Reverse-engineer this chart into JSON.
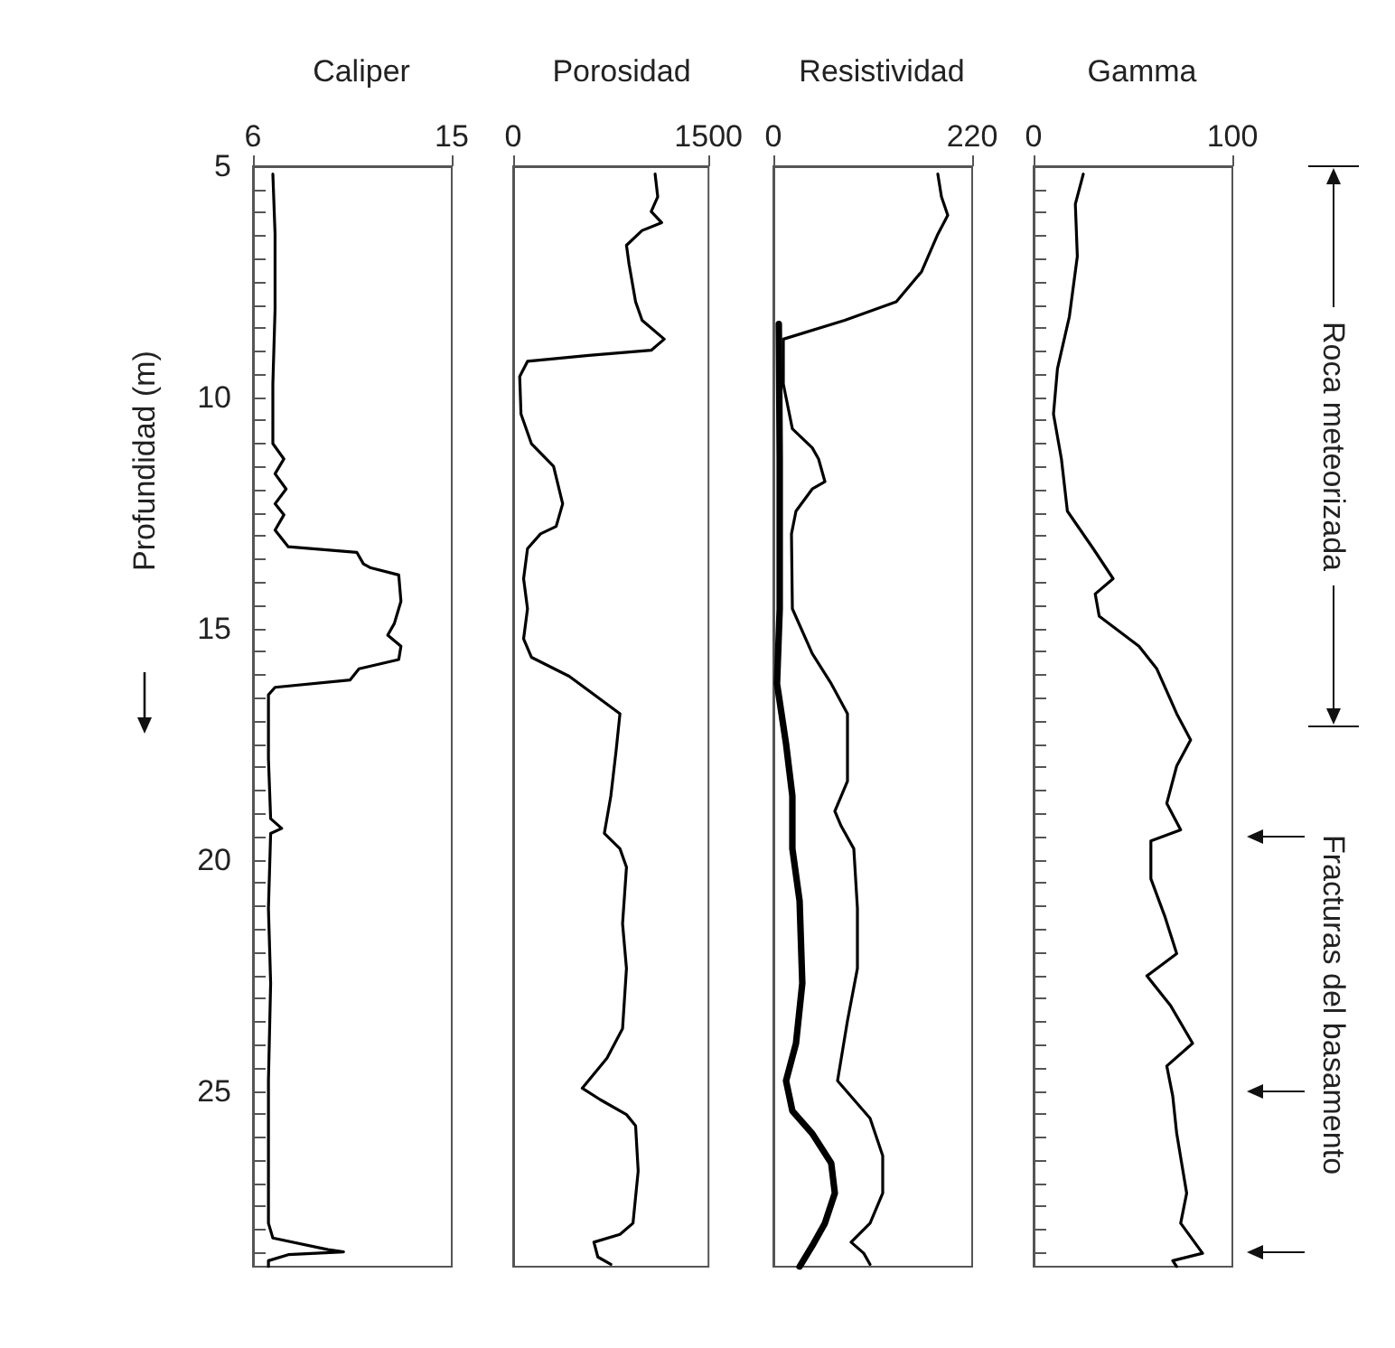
{
  "chart_data": [
    {
      "type": "line",
      "title": "Caliper",
      "ylabel": "Profundidad (m)",
      "xlim": [
        6,
        15
      ],
      "xticks": [
        6,
        15
      ],
      "ylim": [
        28.8,
        5
      ],
      "marker": "none",
      "yticks": [
        5,
        {
          "value": 5.5,
          "label": null
        },
        {
          "value": 6,
          "label": null
        },
        {
          "value": 6.5,
          "label": null
        },
        {
          "value": 7,
          "label": null
        },
        {
          "value": 7.5,
          "label": null
        },
        {
          "value": 8,
          "label": null
        },
        {
          "value": 8.5,
          "label": null
        },
        {
          "value": 9,
          "label": null
        },
        {
          "value": 9.5,
          "label": null
        },
        10,
        {
          "value": 10.5,
          "label": null
        },
        {
          "value": 11,
          "label": null
        },
        {
          "value": 11.5,
          "label": null
        },
        {
          "value": 12,
          "label": null
        },
        {
          "value": 12.5,
          "label": null
        },
        {
          "value": 13,
          "label": null
        },
        {
          "value": 13.5,
          "label": null
        },
        {
          "value": 14,
          "label": null
        },
        {
          "value": 14.5,
          "label": null
        },
        15,
        {
          "value": 15.5,
          "label": null
        },
        {
          "value": 16,
          "label": null
        },
        {
          "value": 16.5,
          "label": null
        },
        {
          "value": 17,
          "label": null
        },
        {
          "value": 17.5,
          "label": null
        },
        {
          "value": 18,
          "label": null
        },
        {
          "value": 18.5,
          "label": null
        },
        {
          "value": 19,
          "label": null
        },
        {
          "value": 19.5,
          "label": null
        },
        20,
        {
          "value": 20.5,
          "label": null
        },
        {
          "value": 21,
          "label": null
        },
        {
          "value": 21.5,
          "label": null
        },
        {
          "value": 22,
          "label": null
        },
        {
          "value": 22.5,
          "label": null
        },
        {
          "value": 23,
          "label": null
        },
        {
          "value": 23.5,
          "label": null
        },
        {
          "value": 24,
          "label": null
        },
        {
          "value": 24.5,
          "label": null
        },
        25,
        {
          "value": 25.5,
          "label": null
        },
        {
          "value": 26,
          "label": null
        },
        {
          "value": 26.5,
          "label": null
        },
        {
          "value": 27,
          "label": null
        },
        {
          "value": 27.5,
          "label": null
        },
        {
          "value": 28,
          "label": null
        },
        {
          "value": 28.5,
          "label": null
        }
      ],
      "series": [
        {
          "color": "#000000",
          "x": [
            6.9,
            7.0,
            7.0,
            6.9,
            6.9,
            7.4,
            7.0,
            7.5,
            7.0,
            7.4,
            7.0,
            7.6,
            10.7,
            11.0,
            11.3,
            12.6,
            12.7,
            12.4,
            12.1,
            12.7,
            12.6,
            10.8,
            10.4,
            7.0,
            6.7,
            6.7,
            6.8,
            7.3,
            6.8,
            6.7,
            6.8,
            6.7,
            6.7,
            6.7,
            6.9,
            9.4,
            10.1,
            7.6,
            6.7,
            6.7
          ],
          "values": [
            5.17,
            6.47,
            8.09,
            9.71,
            11.0,
            11.33,
            11.65,
            11.98,
            12.3,
            12.54,
            12.87,
            13.23,
            13.35,
            13.6,
            13.68,
            13.84,
            14.41,
            14.89,
            15.14,
            15.38,
            15.67,
            15.87,
            16.11,
            16.27,
            16.43,
            17.81,
            19.11,
            19.32,
            19.43,
            21.05,
            22.67,
            24.78,
            25.27,
            27.86,
            28.18,
            28.43,
            28.48,
            28.54,
            28.67,
            28.8
          ]
        }
      ]
    },
    {
      "type": "line",
      "title": "Porosidad",
      "xlim": [
        0,
        1500
      ],
      "xticks": [
        0,
        1500
      ],
      "ylim": [
        28.8,
        5
      ],
      "tick_labels": "x",
      "marker": "none",
      "series": [
        {
          "color": "#000000",
          "x": [
            1090,
            1110,
            1060,
            1140,
            990,
            870,
            890,
            940,
            990,
            1160,
            1060,
            580,
            110,
            50,
            60,
            140,
            310,
            380,
            330,
            210,
            110,
            80,
            110,
            80,
            140,
            430,
            820,
            790,
            750,
            700,
            820,
            870,
            840,
            870,
            840,
            720,
            530,
            670,
            870,
            940,
            960,
            920,
            820,
            620,
            650,
            750
          ],
          "values": [
            5.17,
            5.66,
            5.98,
            6.22,
            6.39,
            6.71,
            7.12,
            7.93,
            8.33,
            8.74,
            8.98,
            9.09,
            9.22,
            9.55,
            10.36,
            11.0,
            11.49,
            12.3,
            12.79,
            12.95,
            13.27,
            13.92,
            14.57,
            15.22,
            15.62,
            16.03,
            16.84,
            17.65,
            18.62,
            19.43,
            19.76,
            20.16,
            21.38,
            22.35,
            23.65,
            24.29,
            24.94,
            25.19,
            25.51,
            25.75,
            26.73,
            27.86,
            28.1,
            28.27,
            28.59,
            28.75
          ]
        }
      ]
    },
    {
      "type": "line",
      "title": "Resistividad",
      "xlim": [
        0,
        220
      ],
      "xticks": [
        0,
        220
      ],
      "ylim": [
        28.8,
        5
      ],
      "tick_labels": "x",
      "marker": "none",
      "series": [
        {
          "color": "#000000",
          "x": [
            182,
            186,
            193,
            182,
            164,
            136,
            79,
            11,
            11,
            21,
            43,
            50,
            57,
            43,
            25,
            20,
            21,
            43,
            64,
            82,
            82,
            68,
            75,
            89,
            93,
            93,
            82,
            71,
            107,
            121,
            121,
            107,
            86,
            100,
            107
          ],
          "values": [
            5.17,
            5.66,
            6.06,
            6.47,
            7.28,
            7.93,
            8.33,
            8.74,
            9.71,
            10.68,
            11.09,
            11.33,
            11.82,
            11.98,
            12.46,
            12.95,
            14.57,
            15.54,
            16.19,
            16.84,
            18.3,
            18.95,
            19.27,
            19.76,
            21.05,
            22.35,
            23.48,
            24.78,
            25.59,
            26.4,
            27.21,
            27.86,
            28.27,
            28.51,
            28.75
          ]
        },
        {
          "color": "#000000",
          "x": [
            6,
            7,
            7,
            4,
            14,
            21,
            21,
            29,
            32,
            25,
            14,
            21,
            43,
            64,
            68,
            57,
            43,
            29
          ],
          "values": [
            8.41,
            11.33,
            14.57,
            16.19,
            17.49,
            18.62,
            19.76,
            20.89,
            22.67,
            23.97,
            24.78,
            25.43,
            25.92,
            26.56,
            27.21,
            27.86,
            28.35,
            28.8
          ]
        }
      ]
    },
    {
      "type": "line",
      "title": "Gamma",
      "xlim": [
        0,
        100
      ],
      "xticks": [
        0,
        100
      ],
      "ylim": [
        28.8,
        5
      ],
      "tick_labels": "x",
      "marker": "none",
      "yticks": [
        {
          "value": 5,
          "label": null
        },
        {
          "value": 5.5,
          "label": null
        },
        {
          "value": 6,
          "label": null
        },
        {
          "value": 6.5,
          "label": null
        },
        {
          "value": 7,
          "label": null
        },
        {
          "value": 7.5,
          "label": null
        },
        {
          "value": 8,
          "label": null
        },
        {
          "value": 8.5,
          "label": null
        },
        {
          "value": 9,
          "label": null
        },
        {
          "value": 9.5,
          "label": null
        },
        {
          "value": 10,
          "label": null
        },
        {
          "value": 10.5,
          "label": null
        },
        {
          "value": 11,
          "label": null
        },
        {
          "value": 11.5,
          "label": null
        },
        {
          "value": 12,
          "label": null
        },
        {
          "value": 12.5,
          "label": null
        },
        {
          "value": 13,
          "label": null
        },
        {
          "value": 13.5,
          "label": null
        },
        {
          "value": 14,
          "label": null
        },
        {
          "value": 14.5,
          "label": null
        },
        {
          "value": 15,
          "label": null
        },
        {
          "value": 15.5,
          "label": null
        },
        {
          "value": 16,
          "label": null
        },
        {
          "value": 16.5,
          "label": null
        },
        {
          "value": 17,
          "label": null
        },
        {
          "value": 17.5,
          "label": null
        },
        {
          "value": 18,
          "label": null
        },
        {
          "value": 18.5,
          "label": null
        },
        {
          "value": 19,
          "label": null
        },
        {
          "value": 19.5,
          "label": null
        },
        {
          "value": 20,
          "label": null
        },
        {
          "value": 20.5,
          "label": null
        },
        {
          "value": 21,
          "label": null
        },
        {
          "value": 21.5,
          "label": null
        },
        {
          "value": 22,
          "label": null
        },
        {
          "value": 22.5,
          "label": null
        },
        {
          "value": 23,
          "label": null
        },
        {
          "value": 23.5,
          "label": null
        },
        {
          "value": 24,
          "label": null
        },
        {
          "value": 24.5,
          "label": null
        },
        {
          "value": 25,
          "label": null
        },
        {
          "value": 25.5,
          "label": null
        },
        {
          "value": 26,
          "label": null
        },
        {
          "value": 26.5,
          "label": null
        },
        {
          "value": 27,
          "label": null
        },
        {
          "value": 27.5,
          "label": null
        },
        {
          "value": 28,
          "label": null
        },
        {
          "value": 28.5,
          "label": null
        }
      ],
      "series": [
        {
          "color": "#000000",
          "x": [
            25,
            21,
            22,
            18,
            12,
            10,
            14,
            17,
            30,
            40,
            31,
            33,
            53,
            62,
            72,
            79,
            72,
            67,
            74,
            59,
            59,
            66,
            72,
            57,
            69,
            80,
            67,
            70,
            72,
            77,
            74,
            85,
            70,
            72
          ],
          "values": [
            5.17,
            5.82,
            6.95,
            8.25,
            9.38,
            10.36,
            11.33,
            12.46,
            13.27,
            13.92,
            14.25,
            14.73,
            15.38,
            15.87,
            16.84,
            17.41,
            17.97,
            18.78,
            19.35,
            19.59,
            20.41,
            21.22,
            22.03,
            22.51,
            23.16,
            23.97,
            24.46,
            25.11,
            25.92,
            27.21,
            27.86,
            28.51,
            28.67,
            28.8
          ]
        }
      ],
      "annotations": [
        "Roca meteorizada",
        "Fracturas del basamento"
      ]
    }
  ]
}
